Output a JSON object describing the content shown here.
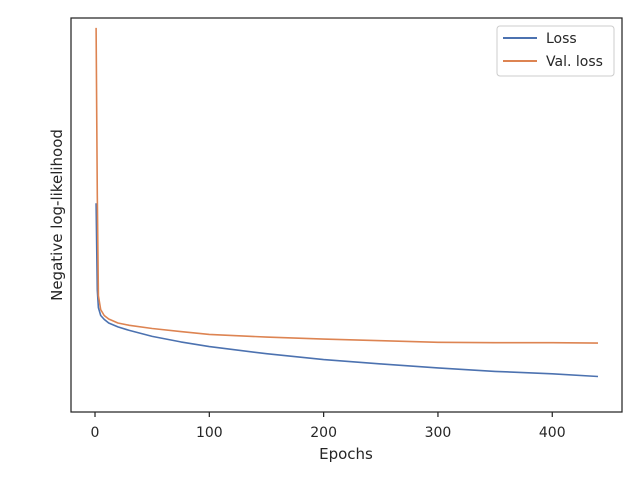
{
  "chart_data": {
    "type": "line",
    "title": "",
    "xlabel": "Epochs",
    "ylabel": "Negative log-likelihood",
    "xlim": [
      -21,
      461
    ],
    "ylim": [
      0,
      1
    ],
    "x_ticks": [
      0,
      100,
      200,
      300,
      400
    ],
    "y_ticks_shown": false,
    "grid": false,
    "legend_position": "top-right",
    "series": [
      {
        "name": "Loss",
        "color": "#4c72b0",
        "points": [
          [
            1,
            0.53
          ],
          [
            2,
            0.31
          ],
          [
            3,
            0.265
          ],
          [
            5,
            0.245
          ],
          [
            8,
            0.235
          ],
          [
            12,
            0.226
          ],
          [
            20,
            0.216
          ],
          [
            30,
            0.207
          ],
          [
            50,
            0.192
          ],
          [
            75,
            0.178
          ],
          [
            100,
            0.166
          ],
          [
            150,
            0.148
          ],
          [
            200,
            0.133
          ],
          [
            250,
            0.122
          ],
          [
            300,
            0.112
          ],
          [
            350,
            0.103
          ],
          [
            400,
            0.097
          ],
          [
            440,
            0.09
          ]
        ]
      },
      {
        "name": "Val. loss",
        "color": "#dd8452",
        "points": [
          [
            1,
            0.975
          ],
          [
            2,
            0.55
          ],
          [
            3,
            0.295
          ],
          [
            5,
            0.26
          ],
          [
            8,
            0.245
          ],
          [
            12,
            0.236
          ],
          [
            20,
            0.226
          ],
          [
            30,
            0.22
          ],
          [
            50,
            0.212
          ],
          [
            75,
            0.204
          ],
          [
            100,
            0.197
          ],
          [
            150,
            0.19
          ],
          [
            200,
            0.185
          ],
          [
            250,
            0.181
          ],
          [
            300,
            0.177
          ],
          [
            350,
            0.176
          ],
          [
            400,
            0.176
          ],
          [
            440,
            0.175
          ]
        ]
      }
    ]
  }
}
